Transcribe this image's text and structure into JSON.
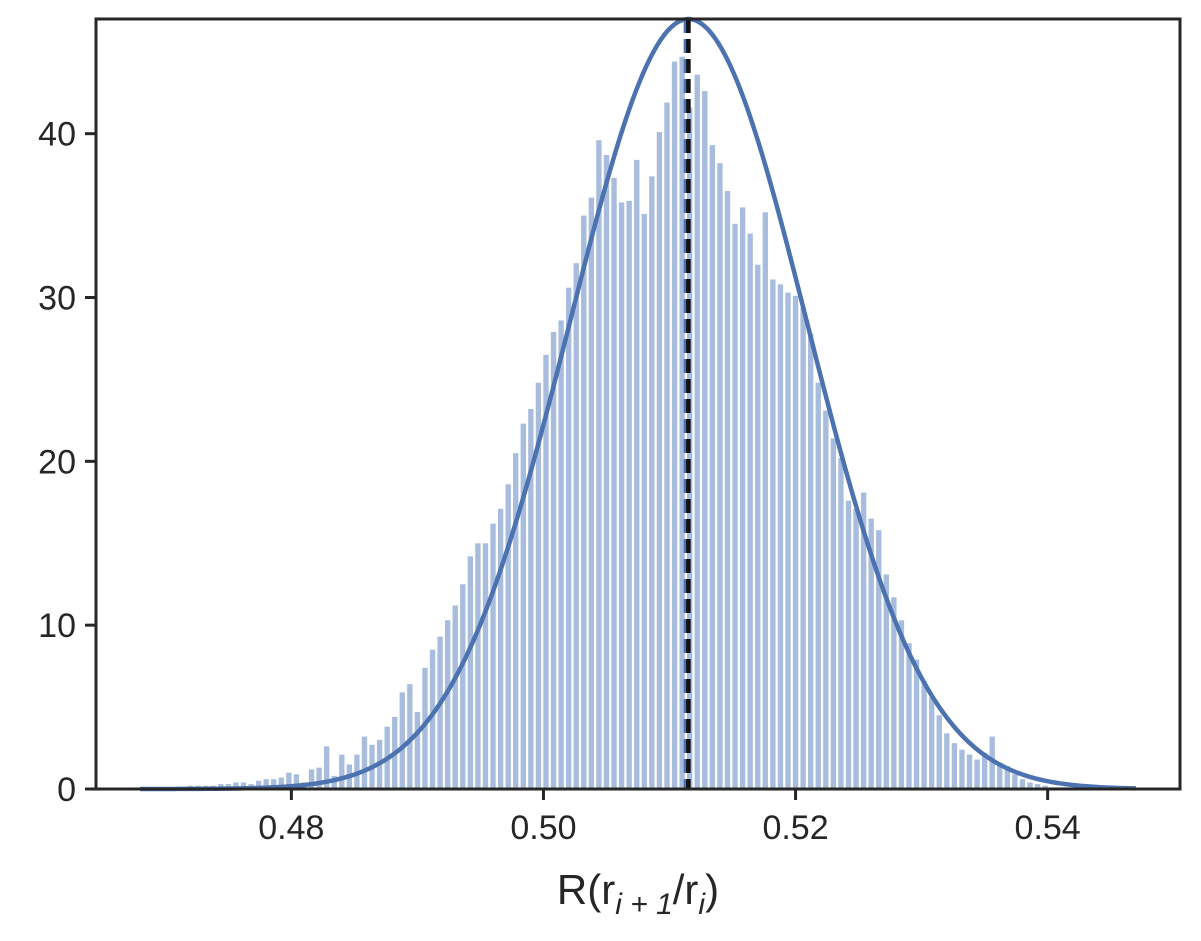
{
  "chart_data": {
    "type": "histogram",
    "title": "",
    "xlabel": {
      "prefix": "R(r",
      "sub1": "i + 1",
      "middle": "/r",
      "sub2": "i",
      "suffix": ")"
    },
    "ylabel": "",
    "xlim": [
      0.4645,
      0.5505
    ],
    "ylim": [
      0,
      47
    ],
    "xticks": [
      0.48,
      0.5,
      0.52,
      0.54
    ],
    "xtick_labels": [
      "0.48",
      "0.50",
      "0.52",
      "0.54"
    ],
    "yticks": [
      0,
      10,
      20,
      30,
      40
    ],
    "ytick_labels": [
      "0",
      "10",
      "20",
      "30",
      "40"
    ],
    "grid": false,
    "legend": "none",
    "bin_start": 0.4675,
    "bin_width": 0.0006,
    "bar_values": [
      0.1,
      0.1,
      0.1,
      0.1,
      0.1,
      0.1,
      0.1,
      0.2,
      0.2,
      0.2,
      0.2,
      0.3,
      0.3,
      0.4,
      0.4,
      0.3,
      0.5,
      0.6,
      0.6,
      0.7,
      1.0,
      0.9,
      0.4,
      1.2,
      1.3,
      2.6,
      0.8,
      2.1,
      1.5,
      2.1,
      3.2,
      2.7,
      3.0,
      3.8,
      4.4,
      5.9,
      6.4,
      4.7,
      7.4,
      8.5,
      9.3,
      10.3,
      11.2,
      12.5,
      14.2,
      15.0,
      15.0,
      16.2,
      17.1,
      18.6,
      20.5,
      22.3,
      23.2,
      24.8,
      26.5,
      27.9,
      28.6,
      30.6,
      32.1,
      35.0,
      36.1,
      39.6,
      38.7,
      37.3,
      35.8,
      35.9,
      38.4,
      35.1,
      37.4,
      40.1,
      41.9,
      44.4,
      44.7,
      41.6,
      43.6,
      42.6,
      39.3,
      38.2,
      36.5,
      34.5,
      35.5,
      33.9,
      32.0,
      35.2,
      31.1,
      30.8,
      30.3,
      30.1,
      29.4,
      27.8,
      24.8,
      23.1,
      21.4,
      20.2,
      17.6,
      17.1,
      18.1,
      16.5,
      15.8,
      13.1,
      11.7,
      10.3,
      8.9,
      7.9,
      6.6,
      5.6,
      4.5,
      3.4,
      2.8,
      2.4,
      2.1,
      1.8,
      2.2,
      3.2,
      1.6,
      1.4,
      0.9,
      0.6,
      0.4,
      0.3,
      0.2,
      0.1,
      0.1,
      0.1,
      0.1,
      0.1,
      0.1,
      0.1,
      0.1,
      0.1
    ],
    "fit_curve": {
      "type": "normal",
      "mean": 0.5115,
      "std": 0.0094,
      "x_range": [
        0.468,
        0.547
      ]
    },
    "vlines": [
      {
        "x": 0.5113,
        "style": "dashed",
        "color": "#4c72b0"
      },
      {
        "x": 0.5115,
        "style": "dashed",
        "color": "#111111"
      }
    ],
    "colors": {
      "bars": "#a8bddd",
      "curve": "#4c72b0",
      "axes": "#262626"
    }
  }
}
